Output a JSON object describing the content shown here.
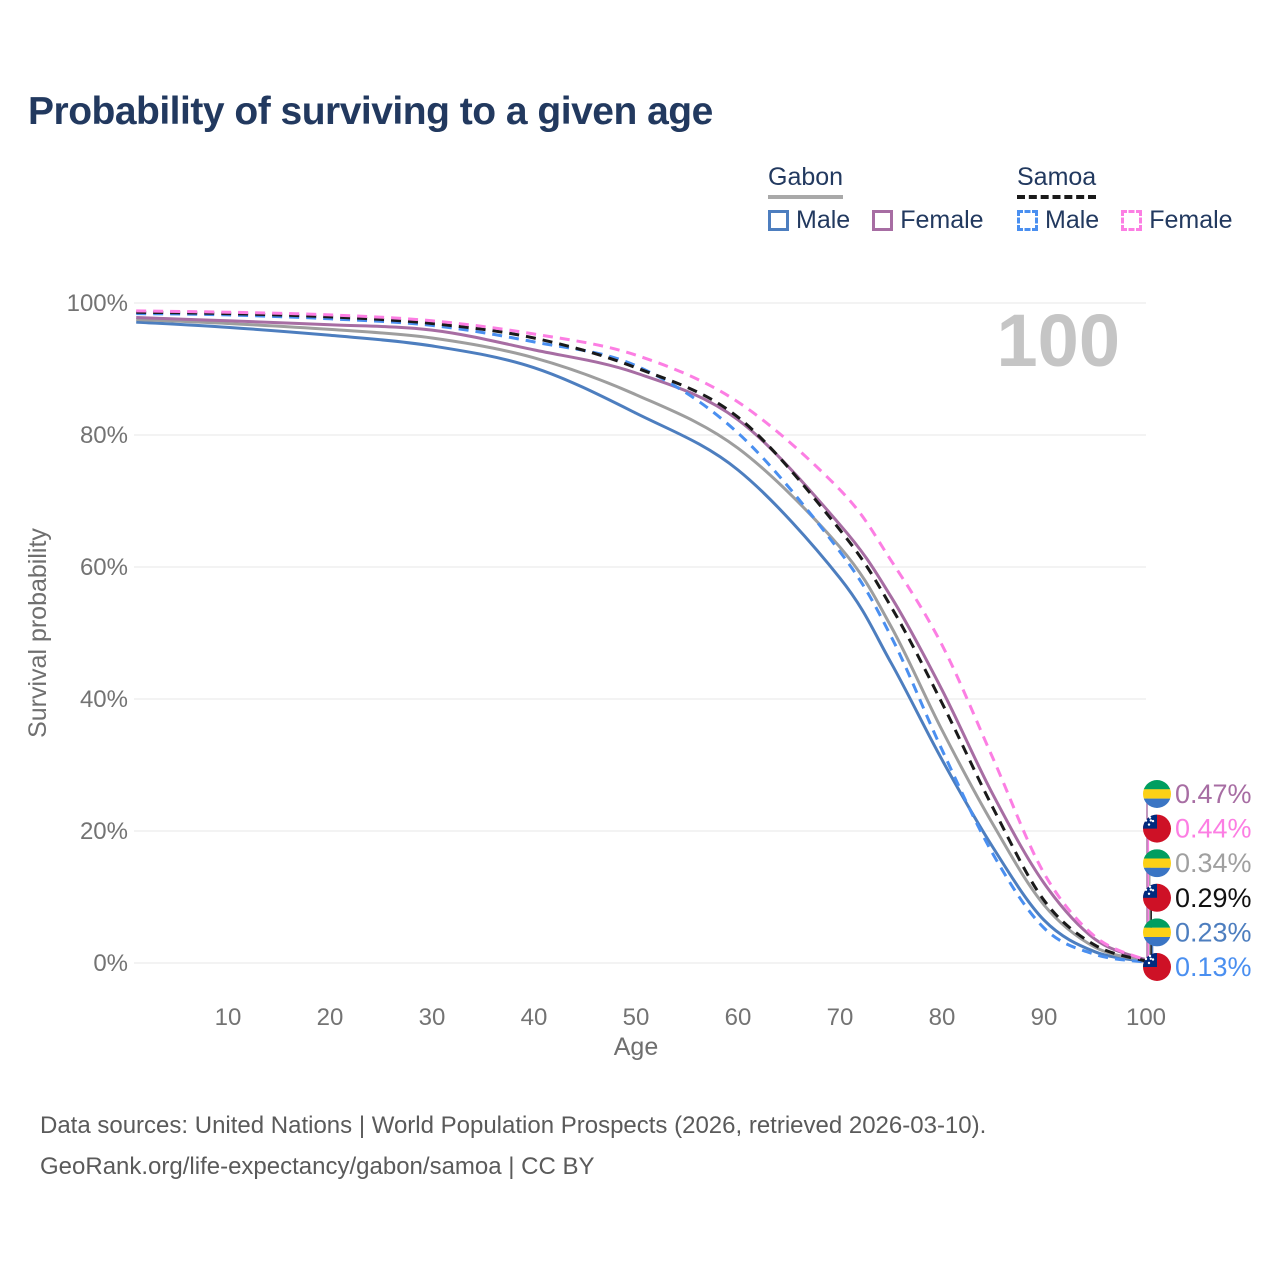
{
  "title": "Probability of surviving to a given age",
  "watermark": {
    "text": "100",
    "color": "#c5c5c5"
  },
  "legend": {
    "groups": [
      {
        "label": "Gabon",
        "underline_style": "solid",
        "underline_color": "#a9a9a9",
        "items": [
          {
            "label": "Male",
            "color": "#4d7ebf"
          },
          {
            "label": "Female",
            "color": "#a76da3"
          }
        ]
      },
      {
        "label": "Samoa",
        "underline_style": "dashed",
        "underline_color": "#1a1a1a",
        "items": [
          {
            "label": "Male",
            "color": "#4a8ff0"
          },
          {
            "label": "Female",
            "color": "#fc7ee3"
          }
        ]
      }
    ]
  },
  "chart_data": {
    "type": "line",
    "title": "Probability of surviving to a given age",
    "xlabel": "Age",
    "ylabel": "Survival probability",
    "xlim": [
      0,
      100
    ],
    "ylim": [
      0,
      100
    ],
    "grid": true,
    "legend_position": "top-right",
    "x_ticks": [
      10,
      20,
      30,
      40,
      50,
      60,
      70,
      80,
      90,
      100
    ],
    "y_ticks": [
      {
        "value": 0,
        "label": "0%"
      },
      {
        "value": 20,
        "label": "20%"
      },
      {
        "value": 40,
        "label": "40%"
      },
      {
        "value": 60,
        "label": "60%"
      },
      {
        "value": 80,
        "label": "80%"
      },
      {
        "value": 100,
        "label": "100%"
      }
    ],
    "x": [
      1,
      10,
      20,
      30,
      40,
      50,
      60,
      70,
      75,
      80,
      85,
      90,
      95,
      100
    ],
    "series": [
      {
        "name": "Gabon Male",
        "color": "#4d7ebf",
        "dash": false,
        "flag": "gabon",
        "end_label": "0.23%",
        "values": [
          97.1,
          96.3,
          95.1,
          93.5,
          90.2,
          83.3,
          74.7,
          58.3,
          45.5,
          30.8,
          17.5,
          6.5,
          1.7,
          0.23
        ]
      },
      {
        "name": "Gabon",
        "color": "#9e9e9e",
        "dash": false,
        "flag": "gabon",
        "end_label": "0.34%",
        "values": [
          97.5,
          96.9,
          96.0,
          94.7,
          91.7,
          86.1,
          78.0,
          63.0,
          51.0,
          35.3,
          21.0,
          8.8,
          2.4,
          0.34
        ]
      },
      {
        "name": "Gabon Female",
        "color": "#a76da3",
        "dash": false,
        "flag": "gabon",
        "end_label": "0.47%",
        "values": [
          97.8,
          97.3,
          96.7,
          95.9,
          92.9,
          89.4,
          82.3,
          66.4,
          55.5,
          41.4,
          25.5,
          12.1,
          3.6,
          0.47
        ]
      },
      {
        "name": "Samoa Male",
        "color": "#4a8ff0",
        "dash": true,
        "flag": "samoa",
        "end_label": "0.13%",
        "values": [
          98.4,
          98.2,
          97.6,
          96.6,
          94.1,
          90.5,
          80.3,
          62.3,
          49.5,
          32.3,
          16.5,
          5.3,
          1.3,
          0.13
        ]
      },
      {
        "name": "Samoa",
        "color": "#1a1a1a",
        "dash": true,
        "flag": "samoa",
        "end_label": "0.29%",
        "values": [
          98.6,
          98.4,
          97.9,
          96.9,
          94.7,
          90.2,
          82.7,
          65.6,
          54.0,
          39.4,
          23.5,
          9.5,
          2.7,
          0.29
        ]
      },
      {
        "name": "Samoa Female",
        "color": "#fc7ee3",
        "dash": true,
        "flag": "samoa",
        "end_label": "0.44%",
        "values": [
          98.8,
          98.6,
          98.2,
          97.3,
          95.3,
          92.1,
          85.0,
          71.7,
          61.0,
          48.2,
          31.0,
          13.6,
          4.0,
          0.44
        ]
      }
    ]
  },
  "end_labels": [
    {
      "series": "Gabon Female",
      "value": "0.47%",
      "color": "#a76da3",
      "flag": "gabon"
    },
    {
      "series": "Samoa Female",
      "value": "0.44%",
      "color": "#fc7ee3",
      "flag": "samoa"
    },
    {
      "series": "Gabon",
      "value": "0.34%",
      "color": "#a0a0a0",
      "flag": "gabon"
    },
    {
      "series": "Samoa",
      "value": "0.29%",
      "color": "#111111",
      "flag": "samoa"
    },
    {
      "series": "Gabon Male",
      "value": "0.23%",
      "color": "#4d7ebf",
      "flag": "gabon"
    },
    {
      "series": "Samoa Male",
      "value": "0.13%",
      "color": "#4a8ff0",
      "flag": "samoa"
    }
  ],
  "flag_colors": {
    "gabon": {
      "green": "#009e60",
      "yellow": "#fcd116",
      "blue": "#3a75c4"
    },
    "samoa": {
      "red": "#ce1126",
      "blue": "#002b7f",
      "star": "#ffffff"
    }
  },
  "axis_colors": {
    "tick": "#737373",
    "grid": "#e7e7e7",
    "axis_label": "#6f6f6f"
  },
  "footer": {
    "line1": "Data sources: United Nations | World Population Prospects (2026, retrieved 2026-03-10).",
    "line2": "GeoRank.org/life-expectancy/gabon/samoa | CC BY"
  }
}
